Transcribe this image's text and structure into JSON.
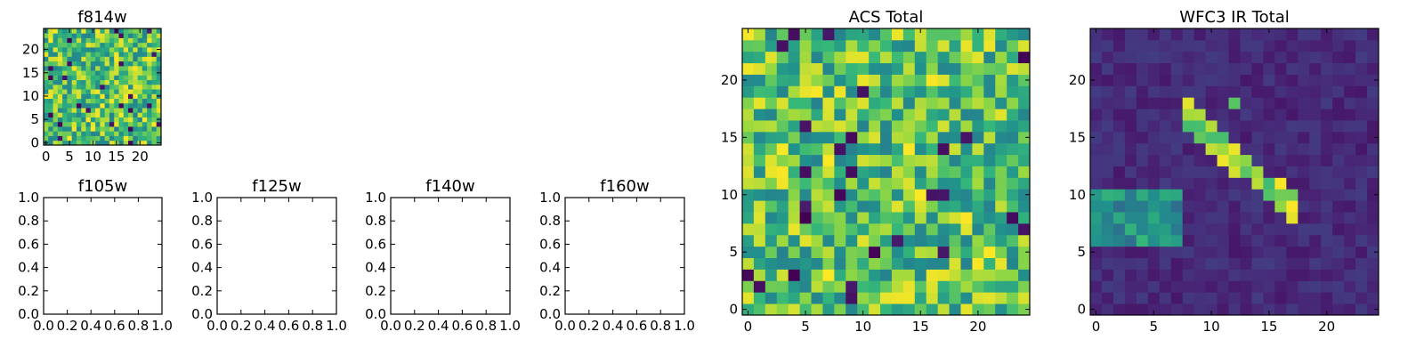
{
  "chart_data": [
    {
      "type": "heatmap",
      "title": "f814w",
      "xlabel": "",
      "ylabel": "",
      "xlim": [
        -0.5,
        24.5
      ],
      "ylim": [
        -0.5,
        24.5
      ],
      "xticks": [
        0,
        5,
        10,
        15,
        20
      ],
      "yticks": [
        0,
        5,
        10,
        15,
        20
      ],
      "xtick_labels": [
        "0",
        "5",
        "10",
        "15",
        "20"
      ],
      "ytick_labels": [
        "0",
        "5",
        "10",
        "15",
        "20"
      ],
      "colormap": "viridis",
      "vmin": 0,
      "vmax": 1,
      "grid": false,
      "shape": [
        25,
        25
      ],
      "values_seed": 11,
      "texture": "noise",
      "values": []
    },
    {
      "type": "line",
      "title": "f105w",
      "xlabel": "",
      "ylabel": "",
      "xlim": [
        0,
        1
      ],
      "ylim": [
        0,
        1
      ],
      "xticks": [
        0,
        0.2,
        0.4,
        0.6,
        0.8,
        1.0
      ],
      "yticks": [
        0,
        0.2,
        0.4,
        0.6,
        0.8,
        1.0
      ],
      "xtick_labels": [
        "0.0",
        "0.2",
        "0.4",
        "0.6",
        "0.8",
        "1.0"
      ],
      "ytick_labels": [
        "0.0",
        "0.2",
        "0.4",
        "0.6",
        "0.8",
        "1.0"
      ],
      "grid": false,
      "series": []
    },
    {
      "type": "line",
      "title": "f125w",
      "xlabel": "",
      "ylabel": "",
      "xlim": [
        0,
        1
      ],
      "ylim": [
        0,
        1
      ],
      "xticks": [
        0,
        0.2,
        0.4,
        0.6,
        0.8,
        1.0
      ],
      "yticks": [
        0,
        0.2,
        0.4,
        0.6,
        0.8,
        1.0
      ],
      "xtick_labels": [
        "0.0",
        "0.2",
        "0.4",
        "0.6",
        "0.8",
        "1.0"
      ],
      "ytick_labels": [
        "0.0",
        "0.2",
        "0.4",
        "0.6",
        "0.8",
        "1.0"
      ],
      "grid": false,
      "series": []
    },
    {
      "type": "line",
      "title": "f140w",
      "xlabel": "",
      "ylabel": "",
      "xlim": [
        0,
        1
      ],
      "ylim": [
        0,
        1
      ],
      "xticks": [
        0,
        0.2,
        0.4,
        0.6,
        0.8,
        1.0
      ],
      "yticks": [
        0,
        0.2,
        0.4,
        0.6,
        0.8,
        1.0
      ],
      "xtick_labels": [
        "0.0",
        "0.2",
        "0.4",
        "0.6",
        "0.8",
        "1.0"
      ],
      "ytick_labels": [
        "0.0",
        "0.2",
        "0.4",
        "0.6",
        "0.8",
        "1.0"
      ],
      "grid": false,
      "series": []
    },
    {
      "type": "line",
      "title": "f160w",
      "xlabel": "",
      "ylabel": "",
      "xlim": [
        0,
        1
      ],
      "ylim": [
        0,
        1
      ],
      "xticks": [
        0,
        0.2,
        0.4,
        0.6,
        0.8,
        1.0
      ],
      "yticks": [
        0,
        0.2,
        0.4,
        0.6,
        0.8,
        1.0
      ],
      "xtick_labels": [
        "0.0",
        "0.2",
        "0.4",
        "0.6",
        "0.8",
        "1.0"
      ],
      "ytick_labels": [
        "0.0",
        "0.2",
        "0.4",
        "0.6",
        "0.8",
        "1.0"
      ],
      "grid": false,
      "series": []
    },
    {
      "type": "heatmap",
      "title": "ACS Total",
      "xlabel": "",
      "ylabel": "",
      "xlim": [
        -0.5,
        24.5
      ],
      "ylim": [
        -0.5,
        24.5
      ],
      "xticks": [
        0,
        5,
        10,
        15,
        20
      ],
      "yticks": [
        0,
        5,
        10,
        15,
        20
      ],
      "xtick_labels": [
        "0",
        "5",
        "10",
        "15",
        "20"
      ],
      "ytick_labels": [
        "0",
        "5",
        "10",
        "15",
        "20"
      ],
      "colormap": "viridis",
      "vmin": 0,
      "vmax": 1,
      "grid": false,
      "shape": [
        25,
        25
      ],
      "values_seed": 23,
      "texture": "noise",
      "values": []
    },
    {
      "type": "heatmap",
      "title": "WFC3 IR Total",
      "xlabel": "",
      "ylabel": "",
      "xlim": [
        -0.5,
        24.5
      ],
      "ylim": [
        -0.5,
        24.5
      ],
      "xticks": [
        0,
        5,
        10,
        15,
        20
      ],
      "yticks": [
        0,
        5,
        10,
        15,
        20
      ],
      "xtick_labels": [
        "0",
        "5",
        "10",
        "15",
        "20"
      ],
      "ytick_labels": [
        "0",
        "5",
        "10",
        "15",
        "20"
      ],
      "colormap": "viridis",
      "vmin": 0,
      "vmax": 1,
      "grid": false,
      "shape": [
        25,
        25
      ],
      "values_seed": 37,
      "texture": "streak",
      "values": []
    }
  ],
  "colors": {
    "axis": "#000000",
    "background": "#ffffff"
  }
}
